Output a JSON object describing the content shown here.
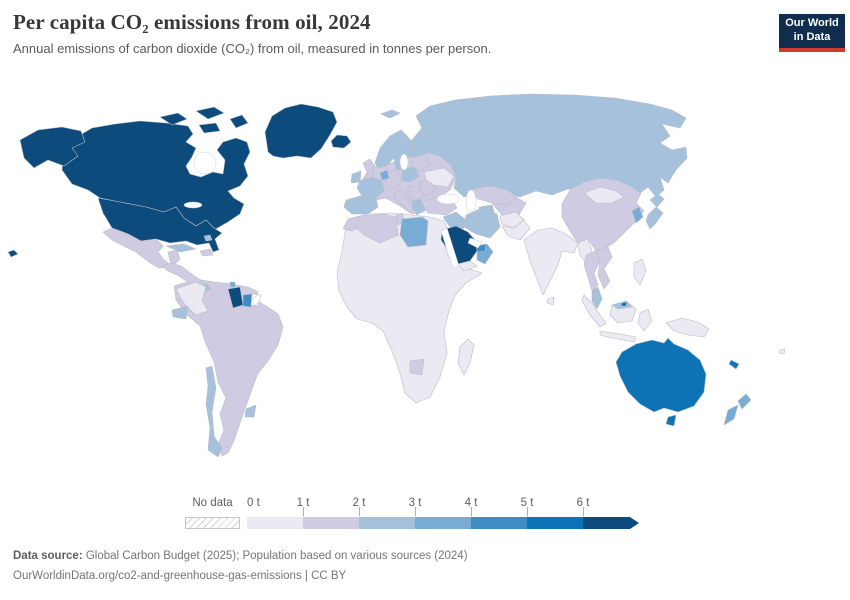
{
  "header": {
    "title": "Per capita CO₂ emissions from oil, 2024",
    "subtitle": "Annual emissions of carbon dioxide (CO₂) from oil, measured in tonnes per person.",
    "logo_line1": "Our World",
    "logo_line2": "in Data"
  },
  "legend": {
    "no_data_label": "No data",
    "tick_labels": [
      "0 t",
      "1 t",
      "2 t",
      "3 t",
      "4 t",
      "5 t",
      "6 t"
    ]
  },
  "footer": {
    "source_label": "Data source:",
    "source_text": " Global Carbon Budget (2025); Population based on various sources (2024)",
    "url_line": "OurWorldinData.org/co2-and-greenhouse-gas-emissions | CC BY"
  },
  "chart_data": {
    "type": "choropleth",
    "title": "Per capita CO₂ emissions from oil, 2024",
    "unit": "tonnes of CO₂ per person",
    "bins": [
      "0–1 t",
      "1–2 t",
      "2–3 t",
      "3–4 t",
      "4–5 t",
      "5–6 t",
      ">6 t"
    ],
    "colors": [
      "#ebe9f2",
      "#cfcbe2",
      "#a5c1dc",
      "#79acd4",
      "#3f8cc3",
      "#0e73b5",
      "#0d4b7c"
    ],
    "no_data_fill": "diagonal-hatch",
    "legend_accent_colors": {
      "owid_logo_bg": "#102d4e",
      "owid_logo_bar": "#d13b2b"
    },
    "regions": {
      "russia": {
        "label": "Russia",
        "bin": 2
      },
      "europe-base": {
        "label": "Central & Eastern Europe",
        "bin": 1
      },
      "africa-base": {
        "label": "Africa (most countries)",
        "bin": 0
      },
      "south-america-main": {
        "label": "South America (Brazil, Peru, Bolivia, Argentina, Venezuela, Paraguay)",
        "bin": 1
      },
      "greenland": {
        "label": "Greenland",
        "bin": 6
      },
      "iceland": {
        "label": "Iceland",
        "bin": 6
      },
      "canada": {
        "label": "Canada",
        "bin": 6
      },
      "canadian-arctic": {
        "label": "Canadian Arctic islands",
        "bin": 6
      },
      "alaska": {
        "label": "Alaska (United States)",
        "bin": 6
      },
      "hawaii": {
        "label": "Hawaii (United States)",
        "bin": 6
      },
      "united-states": {
        "label": "United States",
        "bin": 6
      },
      "mexico": {
        "label": "Mexico",
        "bin": 1
      },
      "central-america": {
        "label": "Central America",
        "bin": 1
      },
      "panama": {
        "label": "Panama",
        "bin": 2
      },
      "cuba": {
        "label": "Cuba",
        "bin": 2
      },
      "hispaniola": {
        "label": "Hispaniola",
        "bin": 1
      },
      "bahamas": {
        "label": "Bahamas",
        "bin": 2
      },
      "trinidad": {
        "label": "Trinidad and Tobago",
        "bin": 3
      },
      "colombia": {
        "label": "Colombia",
        "bin": 0
      },
      "guyana": {
        "label": "Guyana",
        "bin": 6
      },
      "suriname": {
        "label": "Suriname",
        "bin": 4
      },
      "french-guiana": {
        "label": "French Guiana",
        "bin": -1
      },
      "ecuador": {
        "label": "Ecuador",
        "bin": 2
      },
      "chile": {
        "label": "Chile",
        "bin": 2
      },
      "uruguay": {
        "label": "Uruguay",
        "bin": 2
      },
      "uk": {
        "label": "United Kingdom",
        "bin": 1
      },
      "ireland": {
        "label": "Ireland",
        "bin": 2
      },
      "norway": {
        "label": "Norway",
        "bin": 2
      },
      "sweden": {
        "label": "Sweden",
        "bin": 2
      },
      "finland": {
        "label": "Finland",
        "bin": 2
      },
      "denmark": {
        "label": "Denmark",
        "bin": 1
      },
      "iberia": {
        "label": "Spain & Portugal",
        "bin": 2
      },
      "france": {
        "label": "France",
        "bin": 2
      },
      "germany": {
        "label": "Germany",
        "bin": 1
      },
      "benelux": {
        "label": "Belgium & Netherlands",
        "bin": 3
      },
      "italy": {
        "label": "Italy",
        "bin": 1
      },
      "poland": {
        "label": "Poland",
        "bin": 2
      },
      "balkans": {
        "label": "Western Balkans",
        "bin": 1
      },
      "greece": {
        "label": "Greece",
        "bin": 2
      },
      "romania-bulgaria": {
        "label": "Romania & Bulgaria",
        "bin": 1
      },
      "ukraine": {
        "label": "Ukraine",
        "bin": 0
      },
      "belarus-baltics": {
        "label": "Belarus & Baltic states",
        "bin": 1
      },
      "svalbard": {
        "label": "Svalbard",
        "bin": 2
      },
      "kazakhstan": {
        "label": "Kazakhstan",
        "bin": 1
      },
      "central-asia": {
        "label": "Uzbekistan & Kyrgyzstan",
        "bin": 1
      },
      "turkmenistan": {
        "label": "Turkmenistan",
        "bin": 2
      },
      "turkey": {
        "label": "Turkey",
        "bin": 1
      },
      "syria-iraq": {
        "label": "Syria & Iraq",
        "bin": 2
      },
      "iran": {
        "label": "Iran",
        "bin": 2
      },
      "saudi-arabia": {
        "label": "Saudi Arabia",
        "bin": 6
      },
      "yemen": {
        "label": "Yemen",
        "bin": 0
      },
      "oman": {
        "label": "Oman",
        "bin": 3
      },
      "uae": {
        "label": "United Arab Emirates",
        "bin": 4
      },
      "afghanistan": {
        "label": "Afghanistan",
        "bin": 0
      },
      "pakistan": {
        "label": "Pakistan",
        "bin": 0
      },
      "india": {
        "label": "India",
        "bin": 0
      },
      "sri-lanka": {
        "label": "Sri Lanka",
        "bin": 0
      },
      "china": {
        "label": "China",
        "bin": 1
      },
      "mongolia": {
        "label": "Mongolia",
        "bin": 0
      },
      "south-korea": {
        "label": "South Korea",
        "bin": 3
      },
      "japan": {
        "label": "Japan",
        "bin": 2
      },
      "myanmar": {
        "label": "Myanmar",
        "bin": 0
      },
      "thailand": {
        "label": "Thailand",
        "bin": 1
      },
      "vietnam-laos": {
        "label": "Vietnam & Laos",
        "bin": 1
      },
      "malay-peninsula": {
        "label": "Malaysia (peninsular)",
        "bin": 2
      },
      "sumatra": {
        "label": "Indonesia (Sumatra)",
        "bin": 0
      },
      "java": {
        "label": "Indonesia (Java)",
        "bin": 0
      },
      "borneo": {
        "label": "Borneo (Indonesia)",
        "bin": 0
      },
      "malaysia-borneo": {
        "label": "Malaysia (Borneo)",
        "bin": 2
      },
      "brunei": {
        "label": "Brunei",
        "bin": 5
      },
      "sulawesi": {
        "label": "Indonesia (Sulawesi)",
        "bin": 0
      },
      "philippines": {
        "label": "Philippines",
        "bin": 0
      },
      "new-guinea": {
        "label": "New Guinea",
        "bin": 0
      },
      "australia": {
        "label": "Australia",
        "bin": 5
      },
      "tasmania": {
        "label": "Tasmania (Australia)",
        "bin": 5
      },
      "new-caledonia": {
        "label": "New Caledonia",
        "bin": 5
      },
      "new-zealand": {
        "label": "New Zealand",
        "bin": 3
      },
      "fiji": {
        "label": "Fiji",
        "bin": 0
      },
      "madagascar": {
        "label": "Madagascar",
        "bin": 0
      },
      "morocco": {
        "label": "Morocco",
        "bin": 1
      },
      "algeria": {
        "label": "Algeria",
        "bin": 1
      },
      "tunisia": {
        "label": "Tunisia",
        "bin": 1
      },
      "libya": {
        "label": "Libya",
        "bin": 3
      },
      "botswana": {
        "label": "Botswana",
        "bin": 1
      }
    }
  }
}
